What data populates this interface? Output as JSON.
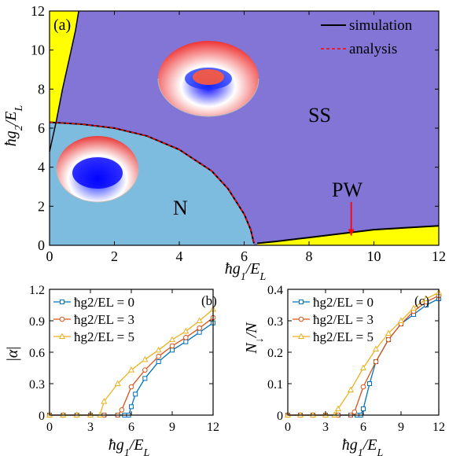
{
  "chart_data": [
    {
      "type": "phase_diagram",
      "panel": "(a)",
      "xlabel": "ħg1/EL",
      "ylabel": "ħg2/EL",
      "xlim": [
        0,
        12
      ],
      "ylim": [
        0,
        12
      ],
      "xticks": [
        "0",
        "2",
        "4",
        "6",
        "8",
        "10",
        "12"
      ],
      "yticks": [
        "0",
        "2",
        "4",
        "6",
        "8",
        "10",
        "12"
      ],
      "regions": [
        {
          "name": "N",
          "color": "#7dbcdf"
        },
        {
          "name": "SS",
          "color": "#8275d6"
        },
        {
          "name": "PW",
          "color": "#ffff00"
        }
      ],
      "legend": [
        {
          "label": "simulation",
          "color": "#000000",
          "style": "solid"
        },
        {
          "label": "analysis",
          "color": "#ff0000",
          "style": "dashed"
        }
      ],
      "boundary_N_SS": {
        "x": [
          0,
          1,
          2,
          3,
          4,
          5,
          5.5,
          6,
          6.2,
          6.3
        ],
        "y": [
          6.3,
          6.2,
          6.0,
          5.6,
          4.9,
          3.8,
          2.9,
          1.6,
          0.8,
          0.1
        ]
      },
      "boundary_PW_SS": {
        "x": [
          6.4,
          7,
          8,
          9,
          10,
          11,
          12
        ],
        "y": [
          0.1,
          0.2,
          0.4,
          0.6,
          0.8,
          0.9,
          1.0
        ]
      },
      "boundary_PW_left": {
        "x": [
          0,
          0.2,
          0.4,
          0.6,
          0.8,
          0.9
        ],
        "y": [
          4.8,
          6.3,
          8.0,
          9.5,
          11.0,
          12.0
        ]
      },
      "annotation_arrow_x": 9.3
    },
    {
      "type": "line",
      "panel": "(b)",
      "xlabel": "ħg1/EL",
      "ylabel": "|α|",
      "xlim": [
        0,
        12
      ],
      "ylim": [
        0,
        1.2
      ],
      "xticks": [
        "0",
        "3",
        "6",
        "9",
        "12"
      ],
      "yticks": [
        "0",
        "0.3",
        "0.6",
        "0.9",
        "1.2"
      ],
      "series": [
        {
          "name": "ħg2/EL = 0",
          "color": "#0072bd",
          "marker": "square",
          "x": [
            0,
            1,
            2,
            3,
            4,
            5,
            5.5,
            5.8,
            6,
            6.3,
            7,
            8,
            9,
            10,
            11,
            12
          ],
          "y": [
            0,
            0,
            0,
            0,
            0,
            0,
            0,
            0,
            0.08,
            0.2,
            0.35,
            0.51,
            0.62,
            0.7,
            0.79,
            0.88
          ]
        },
        {
          "name": "ħg2/EL = 3",
          "color": "#d95319",
          "marker": "circle",
          "x": [
            0,
            1,
            2,
            3,
            4,
            5,
            5.3,
            6,
            7,
            8,
            9,
            10,
            11,
            12
          ],
          "y": [
            0,
            0,
            0,
            0,
            0,
            0,
            0.05,
            0.27,
            0.43,
            0.56,
            0.66,
            0.74,
            0.83,
            0.93
          ]
        },
        {
          "name": "ħg2/EL = 5",
          "color": "#edb120",
          "marker": "triangle",
          "x": [
            0,
            1,
            2,
            3,
            3.7,
            4,
            5,
            6,
            7,
            8,
            9,
            10,
            11,
            12
          ],
          "y": [
            0,
            0,
            0,
            0,
            0,
            0.13,
            0.3,
            0.43,
            0.53,
            0.62,
            0.72,
            0.8,
            0.9,
            1.01
          ]
        }
      ]
    },
    {
      "type": "line",
      "panel": "(c)",
      "xlabel": "ħg1/EL",
      "ylabel": "N↓/N",
      "xlim": [
        0,
        12
      ],
      "ylim": [
        0,
        0.4
      ],
      "xticks": [
        "0",
        "3",
        "6",
        "9",
        "12"
      ],
      "yticks": [
        "0",
        "0.1",
        "0.2",
        "0.3",
        "0.4"
      ],
      "series": [
        {
          "name": "ħg2/EL = 0",
          "color": "#0072bd",
          "marker": "square",
          "x": [
            0,
            1,
            2,
            3,
            4,
            5,
            5.5,
            5.8,
            6,
            6.5,
            7,
            8,
            9,
            10,
            11,
            12
          ],
          "y": [
            0,
            0,
            0,
            0,
            0,
            0,
            0,
            0,
            0.02,
            0.1,
            0.17,
            0.24,
            0.29,
            0.32,
            0.35,
            0.37
          ]
        },
        {
          "name": "ħg2/EL = 3",
          "color": "#d95319",
          "marker": "circle",
          "x": [
            0,
            1,
            2,
            3,
            4,
            5,
            5.3,
            6,
            7,
            8,
            9,
            10,
            11,
            12
          ],
          "y": [
            0,
            0,
            0,
            0,
            0,
            0,
            0.01,
            0.09,
            0.17,
            0.24,
            0.29,
            0.33,
            0.36,
            0.38
          ]
        },
        {
          "name": "ħg2/EL = 5",
          "color": "#edb120",
          "marker": "triangle",
          "x": [
            0,
            1,
            2,
            3,
            3.7,
            4,
            5,
            6,
            7,
            8,
            9,
            10,
            11,
            12
          ],
          "y": [
            0,
            0,
            0,
            0,
            0,
            0.02,
            0.08,
            0.15,
            0.21,
            0.26,
            0.3,
            0.34,
            0.37,
            0.39
          ]
        }
      ]
    }
  ]
}
